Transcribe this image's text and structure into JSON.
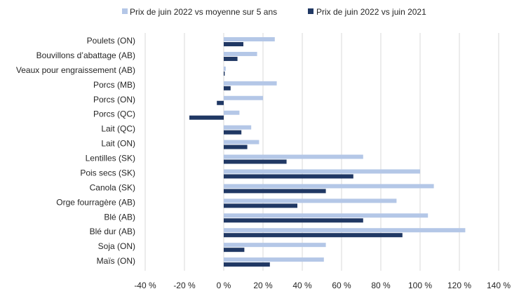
{
  "chart_data": {
    "type": "bar",
    "orientation": "horizontal",
    "categories": [
      "Poulets (ON)",
      "Bouvillons d’abattage (AB)",
      "Veaux pour engraissement (AB)",
      "Porcs (MB)",
      "Porcs (ON)",
      "Porcs (QC)",
      "Lait (QC)",
      "Lait (ON)",
      "Lentilles (SK)",
      "Pois secs (SK)",
      "Canola (SK)",
      "Orge fourragère (AB)",
      "Blé (AB)",
      "Blé dur (AB)",
      "Soja (ON)",
      "Maïs (ON)"
    ],
    "series": [
      {
        "name": "Prix de juin 2022 vs moyenne sur 5 ans",
        "color": "#b4c7e7",
        "values": [
          26,
          17,
          1,
          27,
          20,
          8,
          14,
          18,
          71,
          100,
          107,
          88,
          104,
          123,
          52,
          51
        ]
      },
      {
        "name": "Prix de juin 2022 vs juin 2021",
        "color": "#203864",
        "values": [
          10,
          7,
          0.5,
          3.5,
          -3.5,
          -17.5,
          9,
          12,
          32,
          66,
          52,
          37.5,
          71,
          91,
          10.5,
          23.5
        ]
      }
    ],
    "xlim": [
      -40,
      140
    ],
    "xticks": [
      "-40 %",
      "-20 %",
      "0 %",
      "20 %",
      "40 %",
      "60 %",
      "80 %",
      "100 %",
      "120 %",
      "140 %"
    ],
    "xtick_values": [
      -40,
      -20,
      0,
      20,
      40,
      60,
      80,
      100,
      120,
      140
    ],
    "grid": true,
    "legend": "top"
  }
}
